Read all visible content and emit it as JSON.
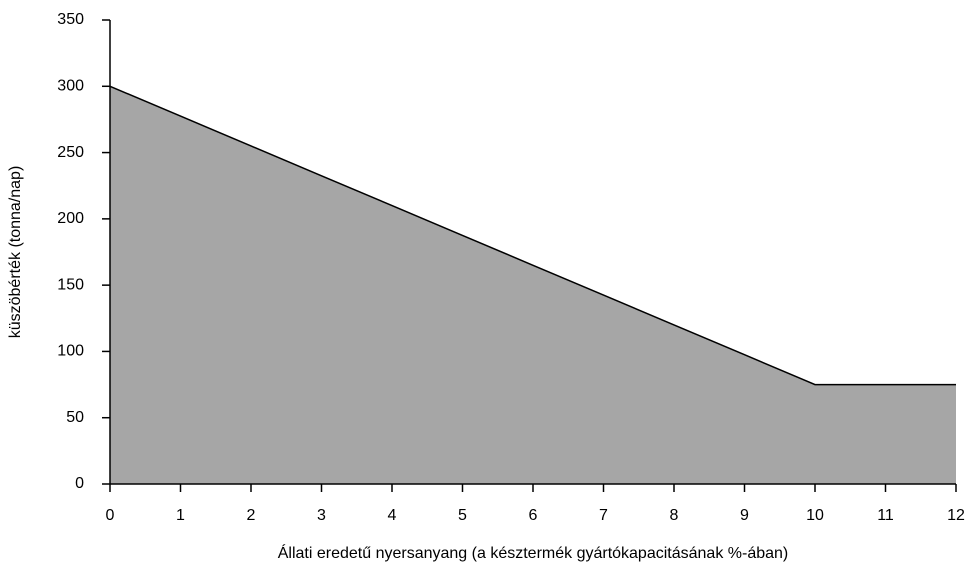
{
  "chart_data": {
    "type": "area",
    "x": [
      0,
      1,
      2,
      3,
      4,
      5,
      6,
      7,
      8,
      9,
      10,
      11,
      12
    ],
    "values": [
      300,
      277.5,
      255,
      232.5,
      210,
      187.5,
      165,
      142.5,
      120,
      97.5,
      75,
      75,
      75
    ],
    "color": "#a6a6a6",
    "line_color": "#000000",
    "xlim": [
      0,
      12
    ],
    "xticks": [
      0,
      1,
      2,
      3,
      4,
      5,
      6,
      7,
      8,
      9,
      10,
      11,
      12
    ],
    "ylim": [
      0,
      350
    ],
    "yticks": [
      0,
      50,
      100,
      150,
      200,
      250,
      300,
      350
    ],
    "grid": false,
    "xlabel": "Állati eredetű nyersanyang (a késztermék gyártókapacitásának %-ában)",
    "ylabel": "küszöbérték (tonna/nap)"
  }
}
